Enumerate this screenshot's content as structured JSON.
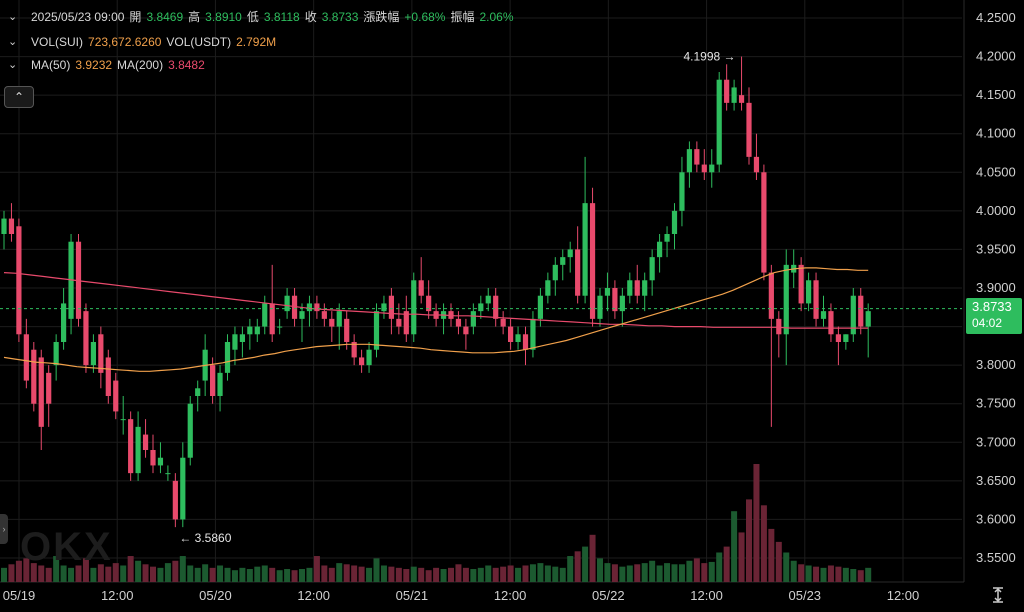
{
  "header": {
    "datetime": "2025/05/23 09:00",
    "open_label": "開",
    "open": "3.8469",
    "high_label": "高",
    "high": "3.8910",
    "low_label": "低",
    "low": "3.8118",
    "close_label": "收",
    "close": "3.8733",
    "change_label": "漲跌幅",
    "change": "+0.68%",
    "amplitude_label": "振幅",
    "amplitude": "2.06%"
  },
  "volume_legend": {
    "vol_sui_label": "VOL(SUI)",
    "vol_sui": "723,672.6260",
    "vol_usdt_label": "VOL(USDT)",
    "vol_usdt": "2.792M"
  },
  "ma_legend": {
    "ma50_label": "MA(50)",
    "ma50": "3.9232",
    "ma200_label": "MA(200)",
    "ma200": "3.8482"
  },
  "price_tag": {
    "price": "3.8733",
    "countdown": "04:02"
  },
  "annotations": {
    "high": "4.1998",
    "low": "3.5860"
  },
  "watermark": "OKX",
  "colors": {
    "up": "#2ebd5e",
    "down": "#e84a6c",
    "ma50": "#f0a04b",
    "ma200": "#e84a6c",
    "background": "#000000"
  },
  "chart_data": {
    "type": "candlestick",
    "x_tick_labels": [
      "05/19",
      "12:00",
      "05/20",
      "12:00",
      "05/21",
      "12:00",
      "05/22",
      "12:00",
      "05/23",
      "12:00"
    ],
    "y_tick_labels": [
      "4.2500",
      "4.2000",
      "4.1500",
      "4.1000",
      "4.0500",
      "4.0000",
      "3.9500",
      "3.9000",
      "3.8500",
      "3.8000",
      "3.7500",
      "3.7000",
      "3.6500",
      "3.6000",
      "3.5500"
    ],
    "ylim": [
      3.523,
      4.265
    ],
    "x_ticks_hours": [
      0,
      12,
      24,
      36,
      48,
      60,
      72,
      84,
      96,
      108
    ],
    "ohlc": [
      [
        3.97,
        4.0,
        3.95,
        3.99
      ],
      [
        3.99,
        4.01,
        3.96,
        3.97
      ],
      [
        3.98,
        3.99,
        3.83,
        3.84
      ],
      [
        3.84,
        3.86,
        3.77,
        3.78
      ],
      [
        3.82,
        3.83,
        3.74,
        3.75
      ],
      [
        3.81,
        3.82,
        3.69,
        3.72
      ],
      [
        3.79,
        3.8,
        3.72,
        3.75
      ],
      [
        3.8,
        3.84,
        3.78,
        3.83
      ],
      [
        3.83,
        3.9,
        3.82,
        3.88
      ],
      [
        3.86,
        3.97,
        3.84,
        3.96
      ],
      [
        3.96,
        3.97,
        3.85,
        3.86
      ],
      [
        3.87,
        3.88,
        3.79,
        3.8
      ],
      [
        3.8,
        3.84,
        3.79,
        3.83
      ],
      [
        3.84,
        3.85,
        3.77,
        3.79
      ],
      [
        3.81,
        3.82,
        3.75,
        3.76
      ],
      [
        3.78,
        3.79,
        3.73,
        3.74
      ],
      [
        3.73,
        3.76,
        3.71,
        3.73
      ],
      [
        3.73,
        3.74,
        3.65,
        3.66
      ],
      [
        3.66,
        3.74,
        3.65,
        3.72
      ],
      [
        3.71,
        3.73,
        3.68,
        3.69
      ],
      [
        3.69,
        3.71,
        3.66,
        3.67
      ],
      [
        3.67,
        3.7,
        3.66,
        3.68
      ],
      [
        3.66,
        3.67,
        3.65,
        3.66
      ],
      [
        3.65,
        3.66,
        3.59,
        3.6
      ],
      [
        3.6,
        3.7,
        3.59,
        3.68
      ],
      [
        3.68,
        3.76,
        3.67,
        3.75
      ],
      [
        3.76,
        3.78,
        3.74,
        3.77
      ],
      [
        3.78,
        3.84,
        3.76,
        3.82
      ],
      [
        3.8,
        3.81,
        3.75,
        3.76
      ],
      [
        3.76,
        3.8,
        3.74,
        3.79
      ],
      [
        3.79,
        3.84,
        3.78,
        3.83
      ],
      [
        3.82,
        3.85,
        3.8,
        3.84
      ],
      [
        3.83,
        3.85,
        3.81,
        3.84
      ],
      [
        3.84,
        3.86,
        3.82,
        3.85
      ],
      [
        3.84,
        3.86,
        3.83,
        3.85
      ],
      [
        3.85,
        3.89,
        3.84,
        3.88
      ],
      [
        3.88,
        3.93,
        3.83,
        3.84
      ],
      [
        3.85,
        3.86,
        3.84,
        3.85
      ],
      [
        3.87,
        3.9,
        3.86,
        3.89
      ],
      [
        3.89,
        3.9,
        3.85,
        3.86
      ],
      [
        3.86,
        3.88,
        3.83,
        3.87
      ],
      [
        3.87,
        3.89,
        3.85,
        3.88
      ],
      [
        3.88,
        3.89,
        3.86,
        3.87
      ],
      [
        3.87,
        3.88,
        3.85,
        3.86
      ],
      [
        3.86,
        3.87,
        3.83,
        3.85
      ],
      [
        3.85,
        3.88,
        3.82,
        3.87
      ],
      [
        3.86,
        3.87,
        3.82,
        3.83
      ],
      [
        3.83,
        3.84,
        3.8,
        3.81
      ],
      [
        3.81,
        3.82,
        3.79,
        3.8
      ],
      [
        3.8,
        3.83,
        3.79,
        3.82
      ],
      [
        3.82,
        3.88,
        3.81,
        3.87
      ],
      [
        3.87,
        3.89,
        3.86,
        3.88
      ],
      [
        3.89,
        3.9,
        3.84,
        3.86
      ],
      [
        3.86,
        3.88,
        3.84,
        3.85
      ],
      [
        3.87,
        3.89,
        3.83,
        3.84
      ],
      [
        3.84,
        3.92,
        3.83,
        3.91
      ],
      [
        3.91,
        3.94,
        3.88,
        3.89
      ],
      [
        3.89,
        3.91,
        3.86,
        3.87
      ],
      [
        3.87,
        3.88,
        3.85,
        3.86
      ],
      [
        3.86,
        3.88,
        3.84,
        3.87
      ],
      [
        3.87,
        3.88,
        3.85,
        3.86
      ],
      [
        3.86,
        3.87,
        3.84,
        3.85
      ],
      [
        3.85,
        3.86,
        3.82,
        3.84
      ],
      [
        3.85,
        3.88,
        3.84,
        3.87
      ],
      [
        3.87,
        3.89,
        3.86,
        3.88
      ],
      [
        3.88,
        3.9,
        3.87,
        3.89
      ],
      [
        3.89,
        3.9,
        3.85,
        3.86
      ],
      [
        3.86,
        3.87,
        3.84,
        3.85
      ],
      [
        3.85,
        3.86,
        3.82,
        3.83
      ],
      [
        3.83,
        3.85,
        3.82,
        3.84
      ],
      [
        3.84,
        3.85,
        3.8,
        3.82
      ],
      [
        3.82,
        3.87,
        3.81,
        3.86
      ],
      [
        3.86,
        3.9,
        3.85,
        3.89
      ],
      [
        3.89,
        3.92,
        3.88,
        3.91
      ],
      [
        3.91,
        3.94,
        3.89,
        3.93
      ],
      [
        3.93,
        3.95,
        3.91,
        3.94
      ],
      [
        3.94,
        3.96,
        3.92,
        3.95
      ],
      [
        3.95,
        3.98,
        3.88,
        3.89
      ],
      [
        3.89,
        4.07,
        3.88,
        4.01
      ],
      [
        4.01,
        4.03,
        3.85,
        3.86
      ],
      [
        3.86,
        3.9,
        3.85,
        3.89
      ],
      [
        3.89,
        3.92,
        3.87,
        3.9
      ],
      [
        3.9,
        3.91,
        3.86,
        3.87
      ],
      [
        3.87,
        3.9,
        3.85,
        3.89
      ],
      [
        3.89,
        3.92,
        3.88,
        3.91
      ],
      [
        3.91,
        3.93,
        3.88,
        3.89
      ],
      [
        3.89,
        3.92,
        3.87,
        3.91
      ],
      [
        3.91,
        3.95,
        3.89,
        3.94
      ],
      [
        3.94,
        3.97,
        3.92,
        3.96
      ],
      [
        3.96,
        3.98,
        3.94,
        3.97
      ],
      [
        3.97,
        4.01,
        3.95,
        4.0
      ],
      [
        4.0,
        4.07,
        3.98,
        4.05
      ],
      [
        4.05,
        4.09,
        4.03,
        4.08
      ],
      [
        4.08,
        4.09,
        4.05,
        4.06
      ],
      [
        4.06,
        4.08,
        4.04,
        4.05
      ],
      [
        4.05,
        4.08,
        4.03,
        4.06
      ],
      [
        4.06,
        4.18,
        4.05,
        4.17
      ],
      [
        4.17,
        4.19,
        4.13,
        4.14
      ],
      [
        4.14,
        4.17,
        4.13,
        4.16
      ],
      [
        4.15,
        4.2,
        4.13,
        4.14
      ],
      [
        4.14,
        4.16,
        4.06,
        4.07
      ],
      [
        4.07,
        4.1,
        4.04,
        4.05
      ],
      [
        4.05,
        4.06,
        3.91,
        3.92
      ],
      [
        3.92,
        3.93,
        3.72,
        3.86
      ],
      [
        3.86,
        3.87,
        3.81,
        3.84
      ],
      [
        3.84,
        3.95,
        3.8,
        3.93
      ],
      [
        3.92,
        3.95,
        3.9,
        3.93
      ],
      [
        3.93,
        3.94,
        3.87,
        3.88
      ],
      [
        3.88,
        3.92,
        3.87,
        3.91
      ],
      [
        3.91,
        3.92,
        3.85,
        3.86
      ],
      [
        3.86,
        3.89,
        3.85,
        3.87
      ],
      [
        3.87,
        3.88,
        3.83,
        3.84
      ],
      [
        3.84,
        3.85,
        3.8,
        3.83
      ],
      [
        3.83,
        3.84,
        3.82,
        3.84
      ],
      [
        3.84,
        3.9,
        3.83,
        3.89
      ],
      [
        3.89,
        3.9,
        3.84,
        3.85
      ],
      [
        3.85,
        3.88,
        3.81,
        3.87
      ]
    ],
    "volume": [
      0.12,
      0.15,
      0.18,
      0.2,
      0.16,
      0.14,
      0.12,
      0.22,
      0.14,
      0.12,
      0.14,
      0.2,
      0.12,
      0.15,
      0.13,
      0.16,
      0.14,
      0.22,
      0.18,
      0.15,
      0.13,
      0.12,
      0.16,
      0.18,
      0.22,
      0.14,
      0.12,
      0.15,
      0.12,
      0.14,
      0.12,
      0.1,
      0.12,
      0.11,
      0.13,
      0.14,
      0.12,
      0.1,
      0.11,
      0.1,
      0.11,
      0.12,
      0.22,
      0.14,
      0.12,
      0.16,
      0.15,
      0.14,
      0.13,
      0.12,
      0.2,
      0.14,
      0.13,
      0.12,
      0.11,
      0.13,
      0.12,
      0.1,
      0.12,
      0.11,
      0.12,
      0.15,
      0.12,
      0.11,
      0.12,
      0.14,
      0.12,
      0.13,
      0.14,
      0.12,
      0.14,
      0.15,
      0.16,
      0.14,
      0.13,
      0.12,
      0.22,
      0.26,
      0.3,
      0.4,
      0.2,
      0.16,
      0.15,
      0.13,
      0.14,
      0.15,
      0.16,
      0.18,
      0.14,
      0.16,
      0.15,
      0.15,
      0.18,
      0.2,
      0.16,
      0.17,
      0.25,
      0.3,
      0.6,
      0.42,
      0.7,
      1.0,
      0.65,
      0.45,
      0.34,
      0.25,
      0.18,
      0.15,
      0.14,
      0.13,
      0.12,
      0.14,
      0.13,
      0.12,
      0.11,
      0.1,
      0.12,
      0.11,
      0.1
    ],
    "ma50": [
      3.81,
      3.808,
      3.806,
      3.804,
      3.803,
      3.802,
      3.8,
      3.798,
      3.797,
      3.796,
      3.795,
      3.794,
      3.793,
      3.792,
      3.792,
      3.793,
      3.794,
      3.795,
      3.797,
      3.799,
      3.801,
      3.803,
      3.806,
      3.808,
      3.81,
      3.813,
      3.815,
      3.818,
      3.82,
      3.822,
      3.824,
      3.825,
      3.826,
      3.827,
      3.827,
      3.827,
      3.826,
      3.825,
      3.824,
      3.823,
      3.822,
      3.82,
      3.819,
      3.818,
      3.817,
      3.816,
      3.816,
      3.816,
      3.817,
      3.818,
      3.82,
      3.823,
      3.826,
      3.829,
      3.832,
      3.836,
      3.84,
      3.844,
      3.848,
      3.852,
      3.856,
      3.86,
      3.864,
      3.868,
      3.872,
      3.876,
      3.88,
      3.884,
      3.888,
      3.892,
      3.897,
      3.903,
      3.909,
      3.915,
      3.92,
      3.923,
      3.925,
      3.926,
      3.926,
      3.925,
      3.924,
      3.924,
      3.923,
      3.923
    ],
    "ma200": [
      3.92,
      3.919,
      3.917,
      3.915,
      3.913,
      3.911,
      3.909,
      3.907,
      3.905,
      3.903,
      3.901,
      3.899,
      3.897,
      3.895,
      3.893,
      3.891,
      3.889,
      3.887,
      3.885,
      3.883,
      3.881,
      3.879,
      3.877,
      3.875,
      3.873,
      3.872,
      3.871,
      3.87,
      3.869,
      3.868,
      3.867,
      3.866,
      3.866,
      3.865,
      3.865,
      3.864,
      3.864,
      3.863,
      3.862,
      3.861,
      3.86,
      3.859,
      3.858,
      3.857,
      3.856,
      3.855,
      3.854,
      3.853,
      3.853,
      3.852,
      3.851,
      3.851,
      3.85,
      3.85,
      3.85,
      3.849,
      3.849,
      3.849,
      3.849,
      3.849,
      3.849,
      3.848,
      3.848,
      3.848,
      3.848,
      3.848,
      3.848,
      3.848
    ],
    "current_price": 3.8733,
    "high_marker": 4.1998,
    "low_marker": 3.586
  }
}
